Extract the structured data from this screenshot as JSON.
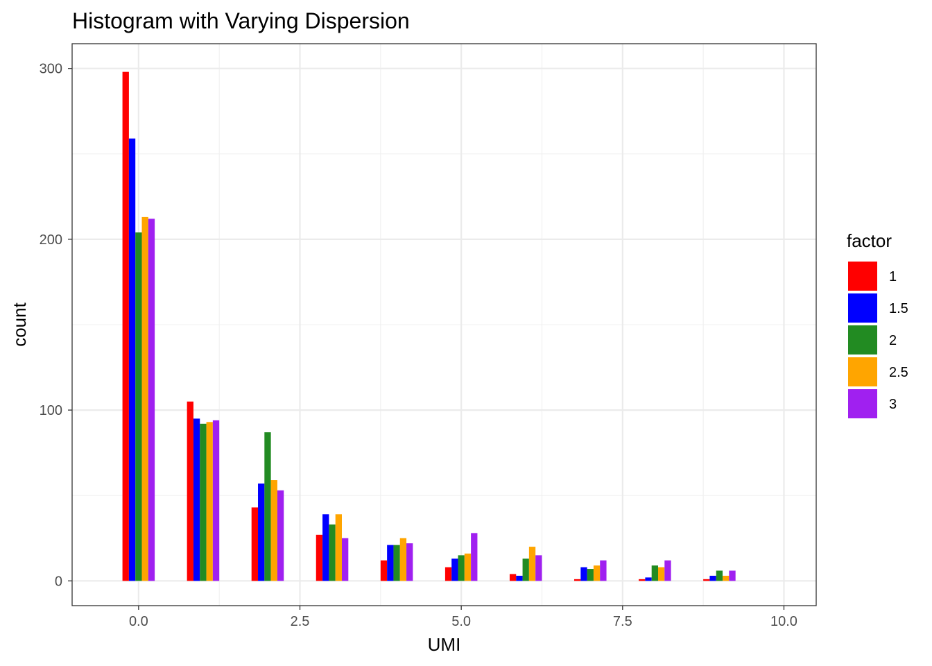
{
  "chart_data": {
    "type": "bar",
    "title": "Histogram with Varying Dispersion",
    "xlabel": "UMI",
    "ylabel": "count",
    "x": [
      0,
      1,
      2,
      3,
      4,
      5,
      6,
      7,
      8,
      9
    ],
    "xlim": [
      -1.03,
      10.5
    ],
    "ylim": [
      -14.5,
      314.5
    ],
    "x_ticks": [
      0,
      2.5,
      5,
      7.5,
      10
    ],
    "x_tick_labels": [
      "0.0",
      "2.5",
      "5.0",
      "7.5",
      "10.0"
    ],
    "y_ticks": [
      0,
      100,
      200,
      300
    ],
    "y_tick_labels": [
      "0",
      "100",
      "200",
      "300"
    ],
    "grid": true,
    "legend_title": "factor",
    "legend_position": "right",
    "series": [
      {
        "name": "1",
        "color": "#ff0000",
        "values": [
          298,
          105,
          43,
          27,
          12,
          8,
          4,
          1,
          1,
          1
        ]
      },
      {
        "name": "1.5",
        "color": "#0000ff",
        "values": [
          259,
          95,
          57,
          39,
          21,
          13,
          3,
          8,
          2,
          3
        ]
      },
      {
        "name": "2",
        "color": "#228b22",
        "values": [
          204,
          92,
          87,
          33,
          21,
          15,
          13,
          7,
          9,
          6
        ]
      },
      {
        "name": "2.5",
        "color": "#ffa500",
        "values": [
          213,
          93,
          59,
          39,
          25,
          16,
          20,
          9,
          8,
          3
        ]
      },
      {
        "name": "3",
        "color": "#a020f0",
        "values": [
          212,
          94,
          53,
          25,
          22,
          28,
          15,
          12,
          12,
          6
        ]
      }
    ]
  }
}
